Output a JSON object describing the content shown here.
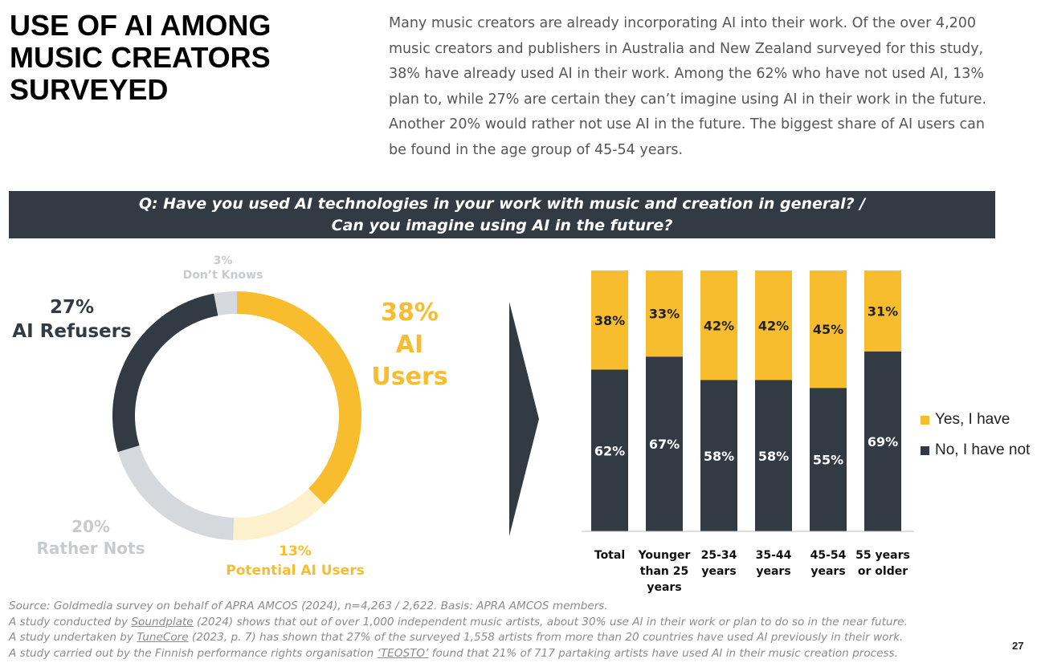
{
  "title": "USE OF AI AMONG MUSIC CREATORS SURVEYED",
  "intro": "Many music creators are already incorporating AI into their work. Of the over 4,200 music creators and publishers in Australia and New Zealand surveyed for this study, 38% have already used AI in their work. Among the 62% who have not used AI, 13% plan to, while 27% are certain they can’t imagine using AI in their work in the future. Another 20% would rather not use AI in the future. The biggest share of AI users can be found in the age group of 45-54 years.",
  "question": {
    "line1": "Q: Have you used AI technologies in your work with music and creation in general? /",
    "line2": "Can you imagine using AI in the future?"
  },
  "colors": {
    "yellow": "#f8bd2e",
    "dark": "#323a44",
    "lightgray": "#d5d9de",
    "cream": "#fdf0cc",
    "midgray": "#c8cbce",
    "donut_text_gray": "#c8cbce"
  },
  "donut_labels": {
    "users_pct": "38%",
    "users_name": "AI Users",
    "refusers_pct": "27%",
    "refusers_name": "AI Refusers",
    "dk_pct": "3%",
    "dk_name": "Don’t Knows",
    "rather_pct": "20%",
    "rather_name": "Rather Nots",
    "potential_pct": "13%",
    "potential_name": "Potential AI Users"
  },
  "chart_data": [
    {
      "type": "pie",
      "donut": true,
      "slices": [
        {
          "name": "AI Users",
          "value": 38
        },
        {
          "name": "Potential AI Users",
          "value": 13
        },
        {
          "name": "Rather Nots",
          "value": 20
        },
        {
          "name": "AI Refusers",
          "value": 27
        },
        {
          "name": "Don’t Knows",
          "value": 3
        }
      ]
    },
    {
      "type": "bar",
      "stacked": true,
      "normalized": true,
      "categories": [
        "Total",
        "Younger than 25 years",
        "25-34 years",
        "35-44 years",
        "45-54 years",
        "55 years or older"
      ],
      "category_lines": [
        [
          "Total"
        ],
        [
          "Younger",
          "than 25",
          "years"
        ],
        [
          "25-34",
          "years"
        ],
        [
          "35-44",
          "years"
        ],
        [
          "45-54",
          "years"
        ],
        [
          "55 years",
          "or older"
        ]
      ],
      "series": [
        {
          "name": "No, I have not",
          "values": [
            62,
            67,
            58,
            58,
            55,
            69
          ]
        },
        {
          "name": "Yes, I have",
          "values": [
            38,
            33,
            42,
            42,
            45,
            31
          ]
        }
      ],
      "legend_position": "right",
      "ylim": [
        0,
        100
      ],
      "grid": false
    }
  ],
  "legend": {
    "yes": "Yes, I have",
    "no": "No, I have not"
  },
  "footer": {
    "line1": "Source: Goldmedia survey on behalf of APRA AMCOS (2024), n=4,263 / 2,622. Basis: APRA AMCOS members.",
    "l2a": "A study conducted by ",
    "l2link": "Soundplate",
    "l2b": " (2024) shows that out of over 1,000 independent music artists, about 30% use AI in their work or plan to do so in the near future.",
    "l3a": "A study undertaken by ",
    "l3link": "TuneCore",
    "l3b": " (2023, p. 7) has shown that 27% of the surveyed 1,558 artists from more than 20 countries have used AI previously in their work.",
    "l4a": "A study carried out by the Finnish performance rights organisation ",
    "l4link": "‘TEOSTO’",
    "l4b": " found that 21% of 717 partaking artists have used AI in their music creation process."
  },
  "page_number": "27"
}
